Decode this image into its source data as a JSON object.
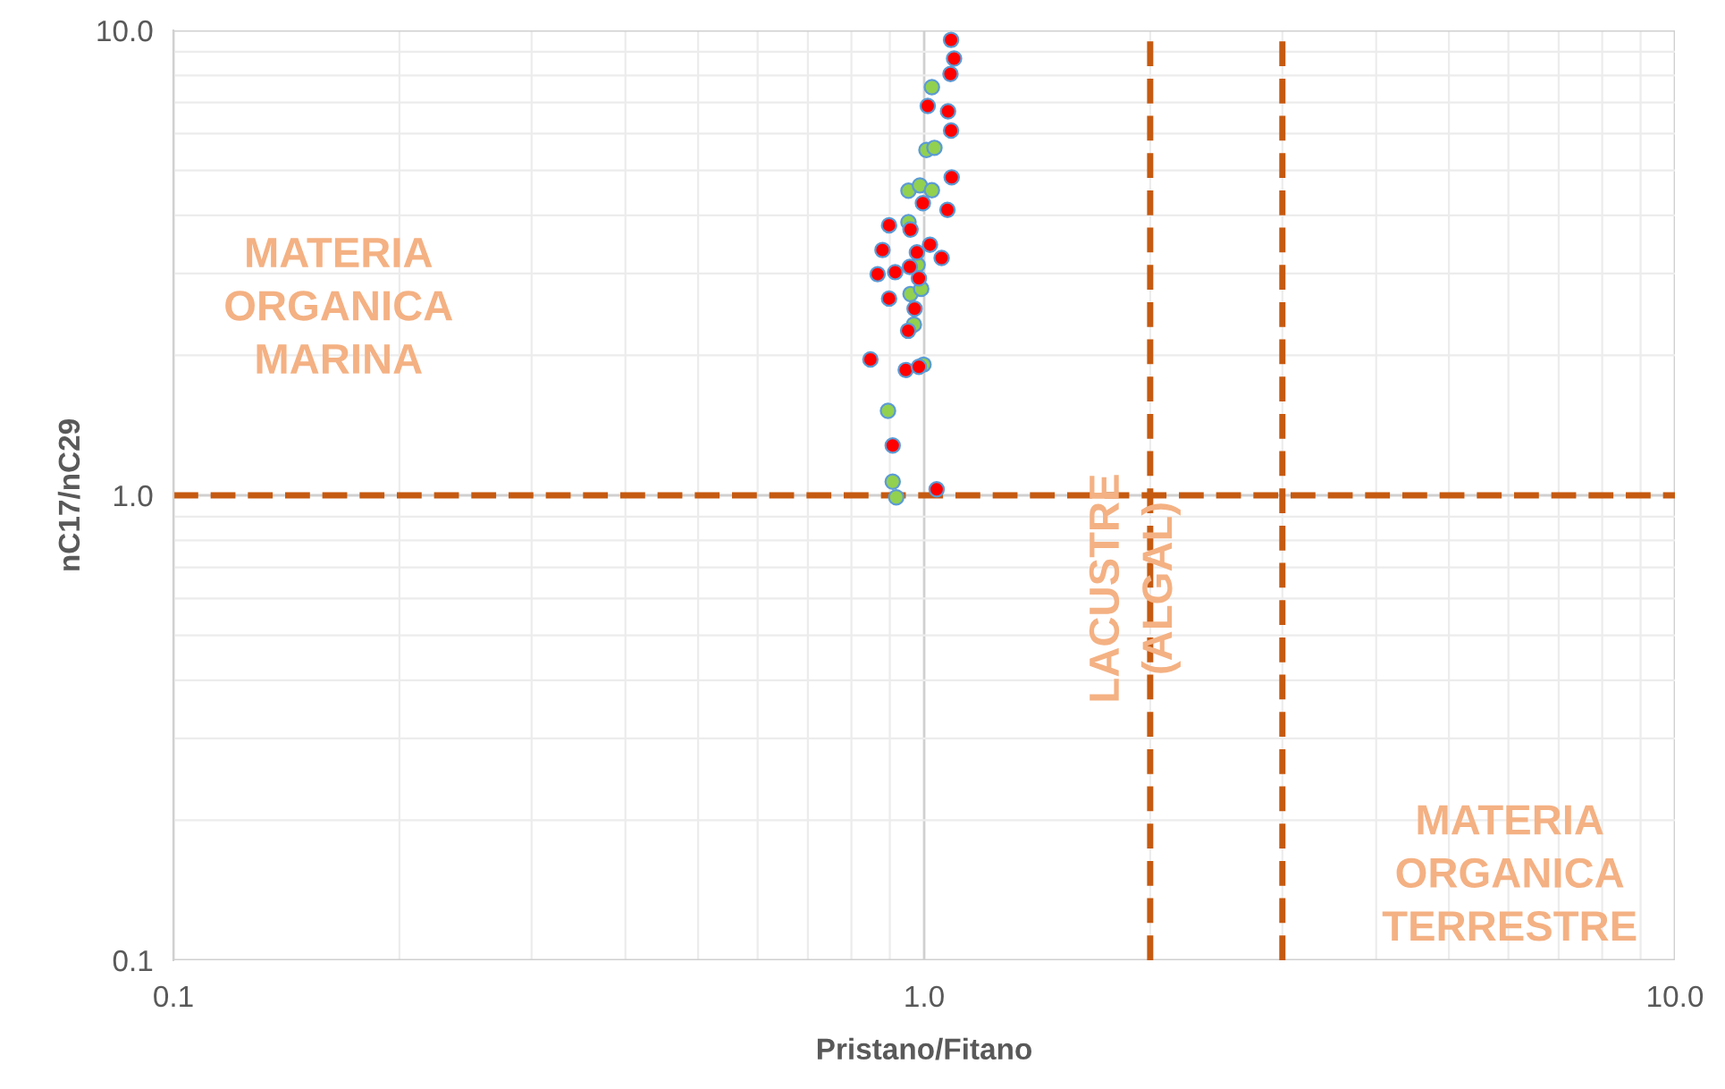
{
  "chart_data": {
    "type": "scatter",
    "xlabel": "Pristano/Fitano",
    "ylabel": "nC17/nC29",
    "log": "xy",
    "grid": true,
    "marker": "circle",
    "xlim": [
      0.1,
      10
    ],
    "ylim": [
      0.1,
      10
    ],
    "xticks": [
      {
        "value": 0.1,
        "label": "0.1"
      },
      {
        "value": 1,
        "label": "1.0"
      },
      {
        "value": 10,
        "label": "10.0"
      }
    ],
    "yticks": [
      {
        "value": 0.1,
        "label": "0.1"
      },
      {
        "value": 1,
        "label": "1.0"
      },
      {
        "value": 10,
        "label": "10.0"
      }
    ],
    "series": [
      {
        "color": "#ff0000",
        "x": [
          1.086,
          1.096,
          1.084,
          1.011,
          1.076,
          1.086,
          1.088,
          0.996,
          1.074,
          0.898,
          0.959,
          0.88,
          1.018,
          0.978,
          1.055,
          0.867,
          0.915,
          0.957,
          0.984,
          0.898,
          0.971,
          0.952,
          0.848,
          0.945,
          0.984,
          0.908,
          1.039
        ],
        "values": [
          9.54,
          8.7,
          8.06,
          6.88,
          6.7,
          6.09,
          4.83,
          4.25,
          4.11,
          3.81,
          3.73,
          3.37,
          3.46,
          3.33,
          3.24,
          2.99,
          3.02,
          3.1,
          2.93,
          2.65,
          2.52,
          2.26,
          1.96,
          1.86,
          1.89,
          1.28,
          1.03
        ]
      },
      {
        "color": "#92d050",
        "x": [
          1.024,
          1.007,
          1.032,
          0.953,
          0.987,
          1.024,
          0.953,
          0.98,
          0.959,
          0.991,
          0.969,
          0.998,
          0.895,
          0.908,
          0.918
        ],
        "values": [
          7.55,
          5.53,
          5.59,
          4.52,
          4.64,
          4.53,
          3.87,
          3.13,
          2.71,
          2.78,
          2.33,
          1.91,
          1.52,
          1.07,
          0.99
        ]
      }
    ],
    "ref_lines": [
      {
        "axis": "y",
        "value": 1,
        "color": "#c55a11",
        "line_style": "dashed"
      },
      {
        "axis": "x",
        "value": 2,
        "color": "#c55a11",
        "line_style": "dashed"
      },
      {
        "axis": "x",
        "value": 3,
        "color": "#c55a11",
        "line_style": "dashed"
      }
    ],
    "annotations": [
      "MATERIA\nORGANICA\nMARINA",
      "LACUSTRE\n(ALGAL)",
      "MATERIA\nORGANICA\nTERRESTRE"
    ]
  }
}
